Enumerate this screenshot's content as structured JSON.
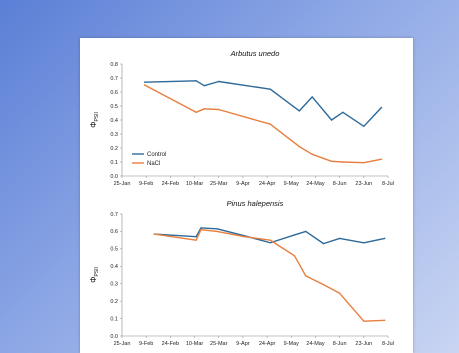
{
  "colors": {
    "control": "#2e6a99",
    "nacl": "#e87e3d"
  },
  "chart_data": [
    {
      "type": "line",
      "title": "Arbutus unedo",
      "ylabel": "Φ",
      "ylabel_sub": "PSII",
      "xlabel": "",
      "x_ticks": [
        "25-Jan",
        "9-Feb",
        "24-Feb",
        "10-Mar",
        "25-Mar",
        "9-Apr",
        "24-Apr",
        "9-May",
        "24-May",
        "8-Jun",
        "23-Jun",
        "8-Jul"
      ],
      "ylim": [
        0,
        0.8
      ],
      "y_ticks": [
        "0.0",
        "0.1",
        "0.2",
        "0.3",
        "0.4",
        "0.5",
        "0.6",
        "0.7",
        "0.8"
      ],
      "grid": false,
      "legend": "bottom-left",
      "series": [
        {
          "name": "Control",
          "color": "control",
          "x": [
            "2024-02-08",
            "2024-03-11",
            "2024-03-16",
            "2024-03-25",
            "2024-04-26",
            "2024-05-14",
            "2024-05-22",
            "2024-06-03",
            "2024-06-10",
            "2024-06-23",
            "2024-07-04"
          ],
          "y": [
            0.67,
            0.68,
            0.645,
            0.675,
            0.62,
            0.465,
            0.565,
            0.4,
            0.455,
            0.355,
            0.49
          ]
        },
        {
          "name": "NaCl",
          "color": "nacl",
          "x": [
            "2024-02-08",
            "2024-03-11",
            "2024-03-16",
            "2024-03-25",
            "2024-04-26",
            "2024-05-14",
            "2024-05-22",
            "2024-06-03",
            "2024-06-10",
            "2024-06-23",
            "2024-07-04"
          ],
          "y": [
            0.65,
            0.455,
            0.48,
            0.475,
            0.37,
            0.21,
            0.155,
            0.105,
            0.1,
            0.095,
            0.12
          ]
        }
      ]
    },
    {
      "type": "line",
      "title": "Pinus halepensis",
      "ylabel": "Φ",
      "ylabel_sub": "PSII",
      "xlabel": "",
      "x_ticks": [
        "25-Jan",
        "9-Feb",
        "24-Feb",
        "10-Mar",
        "25-Mar",
        "9-Apr",
        "24-Apr",
        "9-May",
        "24-May",
        "8-Jun",
        "23-Jun",
        "8-Jul"
      ],
      "ylim": [
        0,
        0.7
      ],
      "y_ticks": [
        "0.0",
        "0.1",
        "0.2",
        "0.3",
        "0.4",
        "0.5",
        "0.6",
        "0.7"
      ],
      "grid": false,
      "legend": "none",
      "series": [
        {
          "name": "Control",
          "color": "control",
          "x": [
            "2024-02-14",
            "2024-03-11",
            "2024-03-14",
            "2024-03-24",
            "2024-04-10",
            "2024-04-26",
            "2024-05-11",
            "2024-05-18",
            "2024-05-29",
            "2024-06-08",
            "2024-06-23",
            "2024-07-06"
          ],
          "y": [
            0.585,
            0.57,
            0.62,
            0.615,
            0.575,
            0.535,
            0.58,
            0.6,
            0.53,
            0.56,
            0.535,
            0.56
          ]
        },
        {
          "name": "NaCl",
          "color": "nacl",
          "x": [
            "2024-02-14",
            "2024-03-11",
            "2024-03-14",
            "2024-03-24",
            "2024-04-10",
            "2024-04-26",
            "2024-05-11",
            "2024-05-18",
            "2024-05-29",
            "2024-06-08",
            "2024-06-23",
            "2024-07-06"
          ],
          "y": [
            0.585,
            0.55,
            0.61,
            0.6,
            0.57,
            0.55,
            0.46,
            0.345,
            0.295,
            0.245,
            0.085,
            0.09
          ]
        }
      ]
    }
  ]
}
